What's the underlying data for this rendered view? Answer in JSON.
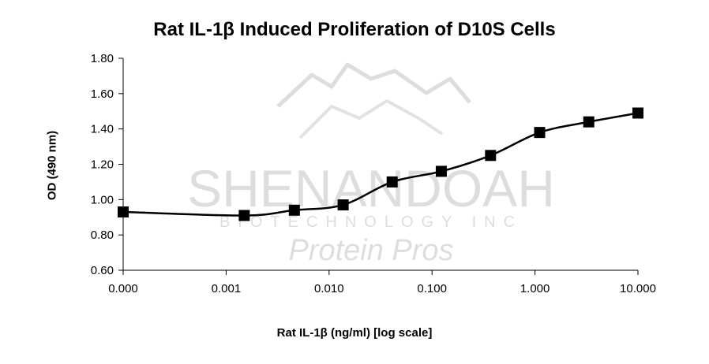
{
  "chart_data": {
    "type": "line",
    "title": "Rat IL-1β Induced Proliferation of D10S Cells",
    "xlabel": "Rat IL-1β (ng/ml) [log scale]",
    "ylabel": "OD (490 nm)",
    "x_scale": "log",
    "x_tick_labels": [
      "0.000",
      "0.001",
      "0.010",
      "0.100",
      "1.000",
      "10.000"
    ],
    "y_tick_labels": [
      "0.60",
      "0.80",
      "1.00",
      "1.20",
      "1.40",
      "1.60",
      "1.80"
    ],
    "ylim": [
      0.6,
      1.8
    ],
    "grid": false,
    "legend": "none",
    "marker": "square",
    "series_color": "#000000",
    "series": [
      {
        "x": [
          0.0001,
          0.0015,
          0.0046,
          0.0137,
          0.041,
          0.123,
          0.37,
          1.11,
          3.33,
          10.0
        ],
        "values": [
          0.93,
          0.91,
          0.94,
          0.97,
          1.1,
          1.16,
          1.25,
          1.38,
          1.44,
          1.49
        ]
      }
    ]
  },
  "watermark": {
    "company": "SHENANDOAH",
    "subtitle": "BIOTECHNOLOGY INC",
    "tagline": "Protein Pros"
  }
}
